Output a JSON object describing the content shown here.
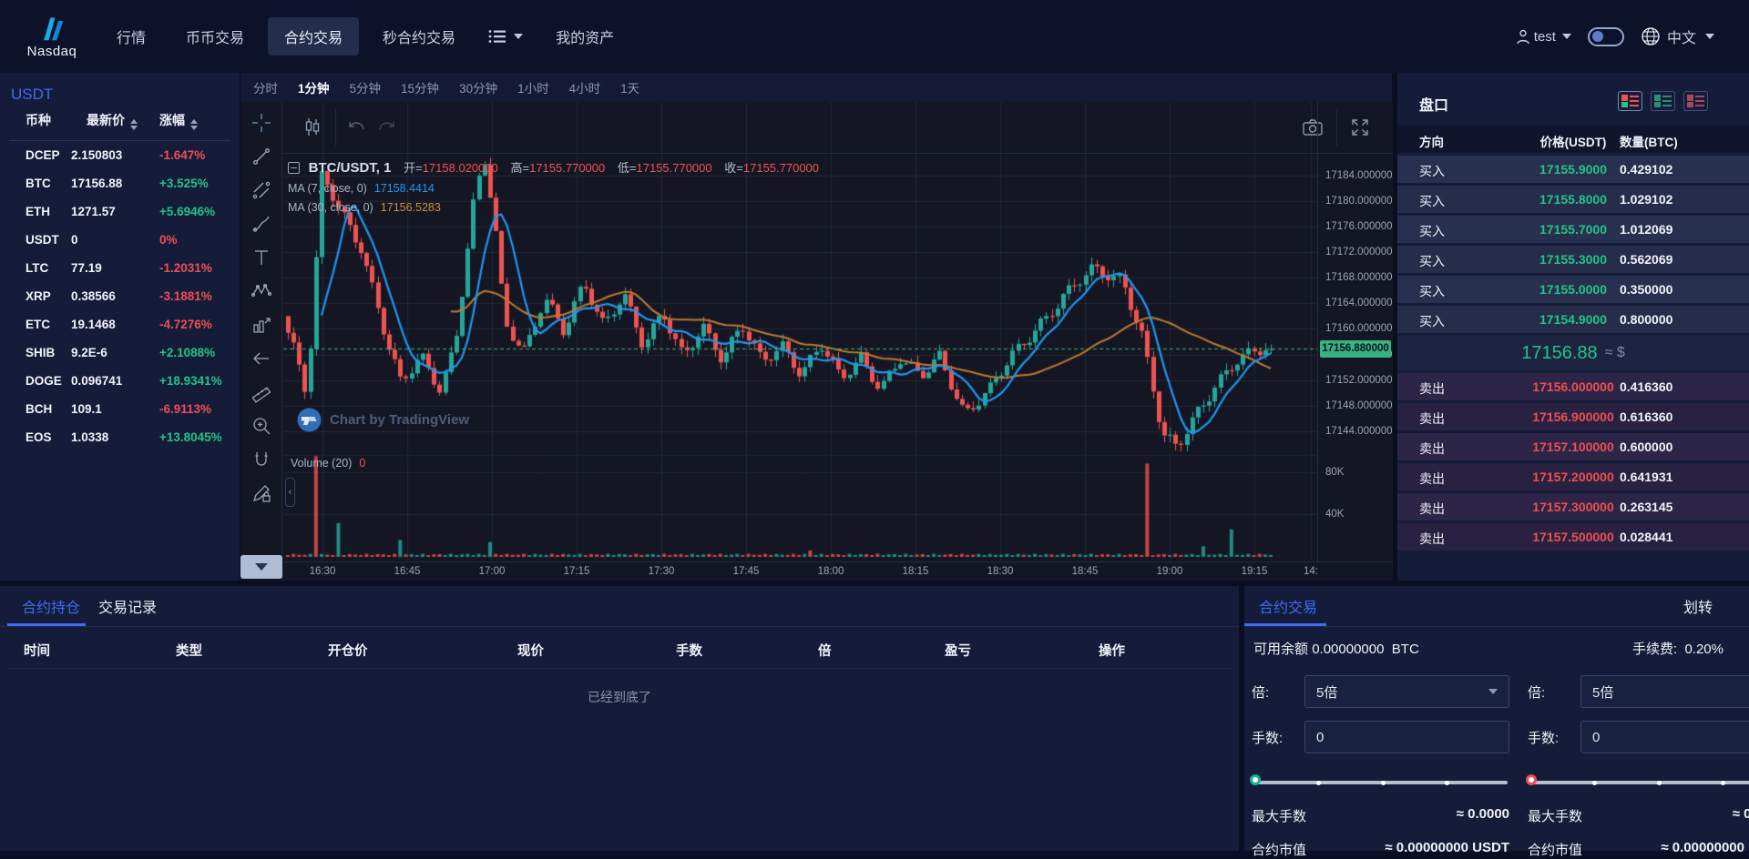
{
  "navbar": {
    "brand": "Nasdaq",
    "items": [
      {
        "label": "行情"
      },
      {
        "label": "币币交易"
      },
      {
        "label": "合约交易",
        "active": true
      },
      {
        "label": "秒合约交易"
      },
      {
        "label": "我的资产"
      }
    ],
    "user": "test",
    "language": "中文"
  },
  "market_sidebar": {
    "tab": "USDT",
    "headers": {
      "coin": "币种",
      "price": "最新价",
      "change": "涨幅"
    },
    "rows": [
      {
        "coin": "DCEP",
        "price": "2.150803",
        "change": "-1.647%",
        "dir": "down"
      },
      {
        "coin": "BTC",
        "price": "17156.88",
        "change": "+3.525%",
        "dir": "up"
      },
      {
        "coin": "ETH",
        "price": "1271.57",
        "change": "+5.6946%",
        "dir": "up"
      },
      {
        "coin": "USDT",
        "price": "0",
        "change": "0%",
        "dir": "down"
      },
      {
        "coin": "LTC",
        "price": "77.19",
        "change": "-1.2031%",
        "dir": "down"
      },
      {
        "coin": "XRP",
        "price": "0.38566",
        "change": "-3.1881%",
        "dir": "down"
      },
      {
        "coin": "ETC",
        "price": "19.1468",
        "change": "-4.7276%",
        "dir": "down"
      },
      {
        "coin": "SHIB",
        "price": "9.2E-6",
        "change": "+2.1088%",
        "dir": "up"
      },
      {
        "coin": "DOGE",
        "price": "0.096741",
        "change": "+18.9341%",
        "dir": "up"
      },
      {
        "coin": "BCH",
        "price": "109.1",
        "change": "-6.9113%",
        "dir": "down"
      },
      {
        "coin": "EOS",
        "price": "1.0338",
        "change": "+13.8045%",
        "dir": "up"
      }
    ]
  },
  "chart": {
    "timeframes": [
      "分时",
      "1分钟",
      "5分钟",
      "15分钟",
      "30分钟",
      "1小时",
      "4小时",
      "1天"
    ],
    "active_timeframe": "1分钟",
    "legend": {
      "symbol": "BTC/USDT, 1",
      "open_label": "开",
      "open": "17158.020000",
      "high_label": "高",
      "high": "17155.770000",
      "low_label": "低",
      "low": "17155.770000",
      "close_label": "收",
      "close": "17155.770000"
    },
    "ma7_label": "MA (7, close, 0)",
    "ma7_value": "17158.4414",
    "ma30_label": "MA (30, close, 0)",
    "ma30_value": "17156.5283",
    "volume_label": "Volume (20)",
    "volume_value": "0",
    "watermark": "Chart by TradingView",
    "current_price": "17156.880000",
    "price_axis": [
      "17184.000000",
      "17180.000000",
      "17176.000000",
      "17172.000000",
      "17168.000000",
      "17164.000000",
      "17160.000000",
      "17156.000000",
      "17152.000000",
      "17148.000000",
      "17144.000000"
    ],
    "volume_axis": [
      "80K",
      "40K"
    ],
    "time_axis": [
      "16:30",
      "16:45",
      "17:00",
      "17:15",
      "17:30",
      "17:45",
      "18:00",
      "18:15",
      "18:30",
      "18:45",
      "19:00",
      "19:15",
      "14:"
    ],
    "chart_data": {
      "type": "candlestick+volume",
      "symbol": "BTC/USDT",
      "interval": "1分钟",
      "ylim": [
        17141,
        17195.5
      ],
      "current_price": 17156.88,
      "num_candles": 176,
      "price_path": [
        [
          0,
          17162
        ],
        [
          0.013,
          17156
        ],
        [
          0.025,
          17149
        ],
        [
          0.04,
          17184
        ],
        [
          0.055,
          17180
        ],
        [
          0.08,
          17173
        ],
        [
          0.105,
          17158
        ],
        [
          0.12,
          17151
        ],
        [
          0.14,
          17156
        ],
        [
          0.16,
          17151
        ],
        [
          0.175,
          17158
        ],
        [
          0.195,
          17181
        ],
        [
          0.205,
          17186
        ],
        [
          0.215,
          17176
        ],
        [
          0.225,
          17161
        ],
        [
          0.245,
          17157
        ],
        [
          0.265,
          17165
        ],
        [
          0.285,
          17159
        ],
        [
          0.305,
          17167
        ],
        [
          0.325,
          17161
        ],
        [
          0.345,
          17166
        ],
        [
          0.365,
          17157
        ],
        [
          0.385,
          17162
        ],
        [
          0.405,
          17156
        ],
        [
          0.425,
          17161
        ],
        [
          0.445,
          17155
        ],
        [
          0.465,
          17160
        ],
        [
          0.485,
          17155
        ],
        [
          0.505,
          17158
        ],
        [
          0.525,
          17153
        ],
        [
          0.545,
          17157
        ],
        [
          0.565,
          17152
        ],
        [
          0.585,
          17156
        ],
        [
          0.605,
          17151
        ],
        [
          0.625,
          17155
        ],
        [
          0.645,
          17152
        ],
        [
          0.665,
          17156
        ],
        [
          0.69,
          17147
        ],
        [
          0.715,
          17150
        ],
        [
          0.74,
          17156
        ],
        [
          0.765,
          17161
        ],
        [
          0.79,
          17165
        ],
        [
          0.82,
          17169
        ],
        [
          0.85,
          17168
        ],
        [
          0.87,
          17159
        ],
        [
          0.89,
          17143
        ],
        [
          0.905,
          17141
        ],
        [
          0.925,
          17147
        ],
        [
          0.945,
          17152
        ],
        [
          0.965,
          17155
        ],
        [
          0.985,
          17156
        ],
        [
          1,
          17156.88
        ]
      ],
      "volume_spikes": [
        [
          0.03,
          95,
          "down"
        ],
        [
          0.05,
          32,
          "up"
        ],
        [
          0.115,
          16,
          "up"
        ],
        [
          0.205,
          14,
          "up"
        ],
        [
          0.53,
          6,
          "down"
        ],
        [
          0.875,
          88,
          "down"
        ],
        [
          0.93,
          10,
          "up"
        ],
        [
          0.96,
          26,
          "up"
        ]
      ],
      "colors": {
        "up": "#26a69a",
        "down": "#ef5350",
        "ma7": "#2196f3",
        "ma30": "#c07a33",
        "current_line": "#36b37e"
      }
    }
  },
  "order_book": {
    "title": "盘口",
    "headers": {
      "side": "方向",
      "price": "价格(USDT)",
      "qty": "数量(BTC)"
    },
    "buy_label": "买入",
    "sell_label": "卖出",
    "buys": [
      {
        "price": "17155.9000",
        "qty": "0.429102"
      },
      {
        "price": "17155.8000",
        "qty": "1.029102"
      },
      {
        "price": "17155.7000",
        "qty": "1.012069"
      },
      {
        "price": "17155.3000",
        "qty": "0.562069"
      },
      {
        "price": "17155.0000",
        "qty": "0.350000"
      },
      {
        "price": "17154.9000",
        "qty": "0.800000"
      }
    ],
    "mid": {
      "price": "17156.88",
      "approx": "≈ $"
    },
    "sells": [
      {
        "price": "17156.000000",
        "qty": "0.416360"
      },
      {
        "price": "17156.900000",
        "qty": "0.616360"
      },
      {
        "price": "17157.100000",
        "qty": "0.600000"
      },
      {
        "price": "17157.200000",
        "qty": "0.641931"
      },
      {
        "price": "17157.300000",
        "qty": "0.263145"
      },
      {
        "price": "17157.500000",
        "qty": "0.028441"
      }
    ]
  },
  "positions_panel": {
    "tabs": [
      {
        "label": "合约持仓",
        "active": true
      },
      {
        "label": "交易记录"
      }
    ],
    "headers": [
      "时间",
      "类型",
      "开仓价",
      "现价",
      "手数",
      "倍",
      "盈亏",
      "操作"
    ],
    "empty_text": "已经到底了"
  },
  "trade_panel": {
    "tab": "合约交易",
    "transfer": "划转",
    "balance_label": "可用余额",
    "balance_value": "0.00000000",
    "balance_unit": "BTC",
    "fee_label": "手续费:",
    "fee_value": "0.20%",
    "leverage_label": "倍:",
    "leverage_value": "5倍",
    "lots_label": "手数:",
    "lots_value": "0",
    "max_lots_label": "最大手数",
    "max_lots_value": "≈ 0.0000",
    "notional_label": "合约市值",
    "notional_value": "≈ 0.00000000 USDT"
  }
}
